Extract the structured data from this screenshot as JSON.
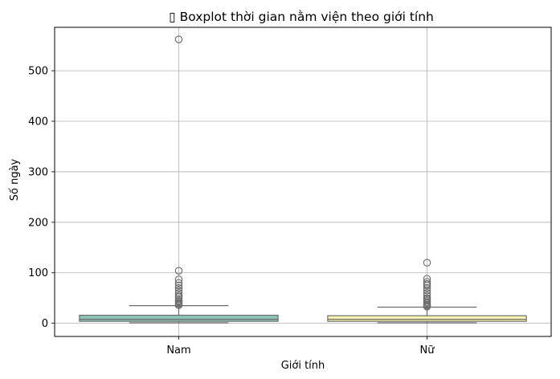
{
  "chart_data": {
    "type": "boxplot",
    "title": "▯ Boxplot thời gian nằm viện theo giới tính",
    "xlabel": "Giới tính",
    "ylabel": "Số ngày",
    "categories": [
      "Nam",
      "Nữ"
    ],
    "ylim": [
      -26,
      586
    ],
    "yticks": [
      0,
      100,
      200,
      300,
      400,
      500
    ],
    "grid": true,
    "boxes": [
      {
        "category": "Nam",
        "color": "#8ec5b8",
        "whisker_low": 1,
        "q1": 4,
        "median": 8,
        "q3": 16,
        "whisker_high": 35,
        "outliers": [
          36,
          38,
          40,
          43,
          45,
          48,
          52,
          55,
          60,
          65,
          70,
          75,
          80,
          87,
          104,
          562
        ]
      },
      {
        "category": "Nữ",
        "color": "#fef6b0",
        "whisker_low": 1,
        "q1": 4,
        "median": 8,
        "q3": 15,
        "whisker_high": 32,
        "outliers": [
          33,
          35,
          37,
          40,
          42,
          45,
          48,
          50,
          55,
          60,
          65,
          70,
          75,
          78,
          82,
          88,
          120
        ]
      }
    ]
  }
}
